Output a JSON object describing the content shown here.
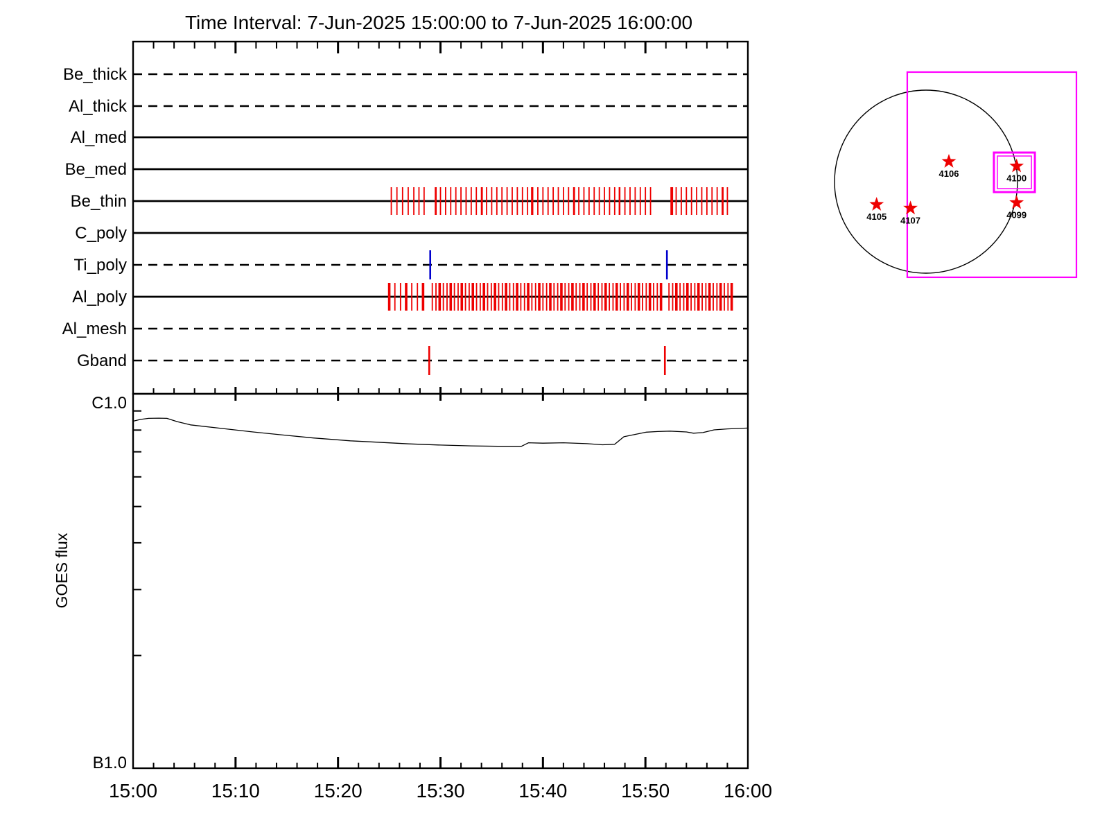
{
  "title": "Time Interval:  7-Jun-2025 15:00:00 to  7-Jun-2025 16:00:00",
  "colors": {
    "black": "#000000",
    "red": "#ee0000",
    "blue": "#0000cd",
    "magenta": "#ff00ff"
  },
  "chart_data": [
    {
      "type": "event-timeline",
      "name": "xrt-exposure-timeline",
      "x_axis": {
        "start": "15:00",
        "end": "16:00",
        "major_tick_minutes": [
          0,
          10,
          20,
          30,
          40,
          50,
          60
        ],
        "tick_labels": [
          "15:00",
          "15:10",
          "15:20",
          "15:30",
          "15:40",
          "15:50",
          "16:00"
        ],
        "minor_tick_step_minutes": 2
      },
      "channels": [
        {
          "name": "Be_thick",
          "line_style": "dashed",
          "tick_color": null,
          "ticks": []
        },
        {
          "name": "Al_thick",
          "line_style": "dashed",
          "tick_color": null,
          "ticks": []
        },
        {
          "name": "Al_med",
          "line_style": "solid",
          "tick_color": null,
          "ticks": []
        },
        {
          "name": "Be_med",
          "line_style": "solid",
          "tick_color": null,
          "ticks": []
        },
        {
          "name": "Be_thin",
          "line_style": "solid",
          "tick_color": "#ee0000",
          "ticks": [
            25.2,
            25.75,
            26.3,
            26.85,
            27.4,
            27.9,
            28.4,
            29.5,
            29.57,
            30.0,
            30.5,
            31.0,
            31.5,
            32.0,
            32.5,
            33.0,
            33.5,
            34.0,
            34.07,
            34.5,
            35.0,
            35.5,
            36.0,
            36.5,
            37.0,
            37.5,
            38.0,
            38.5,
            38.9,
            39.0,
            39.5,
            40.0,
            40.5,
            41.0,
            41.5,
            42.0,
            42.5,
            43.0,
            43.07,
            43.5,
            44.0,
            44.5,
            45.0,
            45.5,
            46.0,
            46.5,
            47.0,
            47.45,
            47.5,
            48.0,
            48.5,
            49.0,
            49.5,
            50.0,
            50.5,
            52.5,
            52.57,
            52.64,
            53.0,
            53.5,
            54.0,
            54.5,
            55.0,
            55.5,
            56.0,
            56.5,
            57.0,
            57.5,
            57.57,
            58.0
          ]
        },
        {
          "name": "C_poly",
          "line_style": "solid",
          "tick_color": null,
          "ticks": []
        },
        {
          "name": "Ti_poly",
          "line_style": "dashed",
          "tick_color": "#0000cd",
          "ticks": [
            29.0,
            52.1
          ]
        },
        {
          "name": "Al_poly",
          "line_style": "solid",
          "tick_color": "#ee0000",
          "ticks": [
            25.0,
            25.55,
            26.1,
            26.65,
            27.2,
            27.75,
            28.3,
            29.2,
            29.56,
            29.92,
            30.28,
            30.64,
            31.0,
            31.36,
            31.72,
            32.08,
            32.44,
            32.8,
            33.16,
            33.52,
            33.88,
            34.24,
            34.6,
            34.96,
            35.32,
            35.68,
            36.04,
            36.4,
            36.76,
            37.12,
            37.48,
            37.84,
            38.2,
            38.56,
            38.92,
            39.28,
            39.64,
            40.0,
            40.36,
            40.72,
            41.08,
            41.44,
            41.8,
            42.16,
            42.52,
            42.88,
            43.24,
            43.6,
            43.96,
            44.32,
            44.68,
            45.04,
            45.4,
            45.76,
            46.12,
            46.48,
            46.84,
            47.2,
            47.56,
            47.92,
            48.28,
            48.64,
            49.0,
            49.36,
            49.72,
            50.08,
            50.44,
            50.8,
            51.16,
            51.52,
            52.3,
            52.66,
            53.02,
            53.38,
            53.74,
            54.1,
            54.46,
            54.82,
            55.18,
            55.54,
            55.9,
            56.26,
            56.62,
            56.98,
            57.34,
            57.7,
            58.06,
            58.42
          ]
        },
        {
          "name": "Al_mesh",
          "line_style": "dashed",
          "tick_color": null,
          "ticks": []
        },
        {
          "name": "Gband",
          "line_style": "dashed",
          "tick_color": "#ee0000",
          "ticks": [
            28.9,
            51.9
          ]
        }
      ]
    },
    {
      "type": "line",
      "name": "goes-flux",
      "ylabel": "GOES flux",
      "y_top_label": "C1.0",
      "y_bottom_label": "B1.0",
      "y_scale": "log",
      "ylim_wm2": [
        1e-07,
        1e-06
      ],
      "minor_flux_ticks_wm2": [
        9e-07,
        8e-07,
        7e-07,
        6e-07,
        5e-07,
        4e-07,
        3e-07,
        2e-07
      ],
      "x_minutes": [
        0,
        0.7,
        1.5,
        2.5,
        3.3,
        4.3,
        5.6,
        8.7,
        11.7,
        14.7,
        17.6,
        21.2,
        23.7,
        26.9,
        29.8,
        33.0,
        35.6,
        37.9,
        38.6,
        40.0,
        42.0,
        44.3,
        45.8,
        47.0,
        47.9,
        50.1,
        51.2,
        52.4,
        54.0,
        54.7,
        55.6,
        56.7,
        58.0,
        60.0
      ],
      "flux_wm2": [
        8.45e-07,
        8.54e-07,
        8.6e-07,
        8.61e-07,
        8.6e-07,
        8.43e-07,
        8.26e-07,
        8.08e-07,
        7.91e-07,
        7.76e-07,
        7.62e-07,
        7.49e-07,
        7.43e-07,
        7.35e-07,
        7.3e-07,
        7.26e-07,
        7.24e-07,
        7.24e-07,
        7.4e-07,
        7.38e-07,
        7.4e-07,
        7.36e-07,
        7.31e-07,
        7.33e-07,
        7.68e-07,
        7.9e-07,
        7.93e-07,
        7.95e-07,
        7.91e-07,
        7.85e-07,
        7.88e-07,
        8.01e-07,
        8.06e-07,
        8.1e-07
      ]
    },
    {
      "type": "scatter",
      "name": "solar-disk-map",
      "active_regions": [
        {
          "label": "4106",
          "x_rsun": 0.25,
          "y_rsun": -0.22,
          "boxed": false
        },
        {
          "label": "4100",
          "x_rsun": 0.99,
          "y_rsun": -0.17,
          "boxed": true
        },
        {
          "label": "4099",
          "x_rsun": 0.99,
          "y_rsun": 0.23,
          "boxed": false
        },
        {
          "label": "4105",
          "x_rsun": -0.54,
          "y_rsun": 0.25,
          "boxed": false
        },
        {
          "label": "4107",
          "x_rsun": -0.17,
          "y_rsun": 0.29,
          "boxed": false
        }
      ],
      "fov_rect_rsun": {
        "x1": -0.205,
        "y1": -1.197,
        "x2": 1.644,
        "y2": 1.045
      },
      "flare_box_rsun": {
        "x1": 0.742,
        "y1": -0.318,
        "x2": 1.19,
        "y2": 0.114
      }
    }
  ]
}
